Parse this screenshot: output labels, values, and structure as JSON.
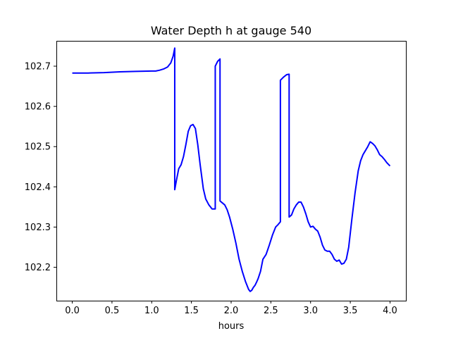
{
  "chart_data": {
    "type": "line",
    "title": "Water Depth h at gauge 540",
    "xlabel": "hours",
    "ylabel": "",
    "xlim": [
      -0.2,
      4.2
    ],
    "ylim": [
      102.117,
      102.763
    ],
    "xticks": [
      0.0,
      0.5,
      1.0,
      1.5,
      2.0,
      2.5,
      3.0,
      3.5,
      4.0
    ],
    "xtick_labels": [
      "0.0",
      "0.5",
      "1.0",
      "1.5",
      "2.0",
      "2.5",
      "3.0",
      "3.5",
      "4.0"
    ],
    "yticks": [
      102.2,
      102.3,
      102.4,
      102.5,
      102.6,
      102.7
    ],
    "ytick_labels": [
      "102.2",
      "102.3",
      "102.4",
      "102.5",
      "102.6",
      "102.7"
    ],
    "grid": false,
    "legend": "none",
    "series": [
      {
        "color": "#0000ff",
        "x": [
          0.0,
          0.2,
          0.4,
          0.6,
          0.8,
          1.0,
          1.05,
          1.1,
          1.15,
          1.2,
          1.24,
          1.27,
          1.29,
          1.29,
          1.31,
          1.34,
          1.37,
          1.4,
          1.43,
          1.46,
          1.49,
          1.52,
          1.55,
          1.58,
          1.61,
          1.65,
          1.68,
          1.72,
          1.76,
          1.8,
          1.8,
          1.83,
          1.86,
          1.86,
          1.89,
          1.92,
          1.95,
          1.98,
          2.02,
          2.06,
          2.1,
          2.14,
          2.18,
          2.22,
          2.24,
          2.26,
          2.28,
          2.3,
          2.32,
          2.34,
          2.37,
          2.4,
          2.44,
          2.48,
          2.52,
          2.56,
          2.59,
          2.62,
          2.62,
          2.66,
          2.7,
          2.73,
          2.73,
          2.76,
          2.79,
          2.82,
          2.85,
          2.88,
          2.91,
          2.94,
          2.97,
          3.0,
          3.03,
          3.06,
          3.09,
          3.12,
          3.15,
          3.18,
          3.21,
          3.24,
          3.27,
          3.3,
          3.33,
          3.36,
          3.39,
          3.42,
          3.45,
          3.48,
          3.52,
          3.56,
          3.6,
          3.63,
          3.66,
          3.69,
          3.72,
          3.75,
          3.78,
          3.81,
          3.84,
          3.87,
          3.9,
          3.93,
          3.96,
          4.0
        ],
        "y": [
          102.683,
          102.683,
          102.684,
          102.686,
          102.687,
          102.688,
          102.688,
          102.69,
          102.693,
          102.698,
          102.708,
          102.725,
          102.745,
          102.393,
          102.415,
          102.445,
          102.455,
          102.475,
          102.505,
          102.538,
          102.552,
          102.555,
          102.545,
          102.505,
          102.455,
          102.395,
          102.37,
          102.355,
          102.345,
          102.345,
          102.7,
          102.712,
          102.718,
          102.365,
          102.36,
          102.355,
          102.343,
          102.325,
          102.295,
          102.26,
          102.22,
          102.19,
          102.165,
          102.145,
          102.14,
          102.143,
          102.15,
          102.155,
          102.163,
          102.172,
          102.19,
          102.22,
          102.232,
          102.255,
          102.28,
          102.3,
          102.306,
          102.313,
          102.665,
          102.673,
          102.679,
          102.68,
          102.325,
          102.33,
          102.345,
          102.355,
          102.362,
          102.362,
          102.35,
          102.333,
          102.313,
          102.3,
          102.302,
          102.295,
          102.29,
          102.275,
          102.255,
          102.243,
          102.24,
          102.24,
          102.232,
          102.22,
          102.215,
          102.218,
          102.208,
          102.21,
          102.22,
          102.25,
          102.32,
          102.385,
          102.44,
          102.465,
          102.48,
          102.49,
          102.5,
          102.512,
          102.508,
          102.502,
          102.492,
          102.48,
          102.475,
          102.468,
          102.46,
          102.452
        ]
      }
    ]
  }
}
